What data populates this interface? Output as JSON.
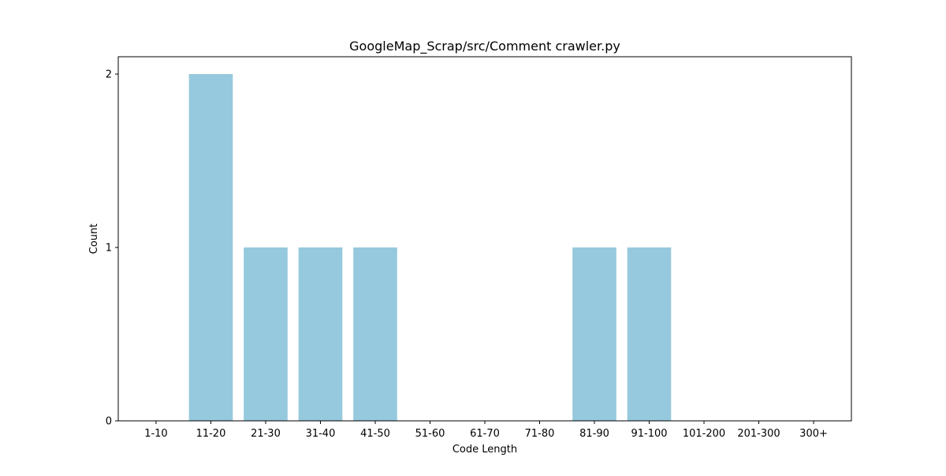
{
  "chart_data": {
    "type": "bar",
    "title": "GoogleMap_Scrap/src/Comment crawler.py",
    "xlabel": "Code Length",
    "ylabel": "Count",
    "categories": [
      "1-10",
      "11-20",
      "21-30",
      "31-40",
      "41-50",
      "51-60",
      "61-70",
      "71-80",
      "81-90",
      "91-100",
      "101-200",
      "201-300",
      "300+"
    ],
    "values": [
      0,
      2,
      1,
      1,
      1,
      0,
      0,
      0,
      1,
      1,
      0,
      0,
      0
    ],
    "ylim": [
      0,
      2.1
    ],
    "yticks": [
      0,
      1,
      2
    ],
    "grid": false,
    "bar_color": "#96c9dd"
  }
}
